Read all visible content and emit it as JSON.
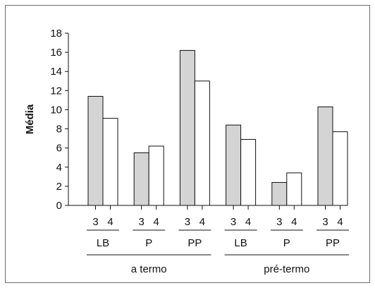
{
  "chart_data": {
    "type": "bar",
    "title": "",
    "ylabel": "Média",
    "xlabel": "",
    "ylim": [
      0,
      18
    ],
    "yticks": [
      0,
      2,
      4,
      6,
      8,
      10,
      12,
      14,
      16,
      18
    ],
    "grid": false,
    "legend": "none",
    "bar_labels": [
      "3",
      "4"
    ],
    "groups": [
      {
        "group": "a termo",
        "subgroups": [
          {
            "label": "LB",
            "values": [
              11.4,
              9.1
            ]
          },
          {
            "label": "P",
            "values": [
              5.5,
              6.2
            ]
          },
          {
            "label": "PP",
            "values": [
              16.2,
              13.0
            ]
          }
        ]
      },
      {
        "group": "pré-termo",
        "subgroups": [
          {
            "label": "LB",
            "values": [
              8.4,
              6.9
            ]
          },
          {
            "label": "P",
            "values": [
              2.4,
              3.4
            ]
          },
          {
            "label": "PP",
            "values": [
              10.3,
              7.7
            ]
          }
        ]
      }
    ],
    "colors": {
      "bar_3": "#d4d4d4",
      "bar_4": "#ffffff",
      "stroke": "#111111",
      "frame": "#6e6e6e"
    }
  }
}
